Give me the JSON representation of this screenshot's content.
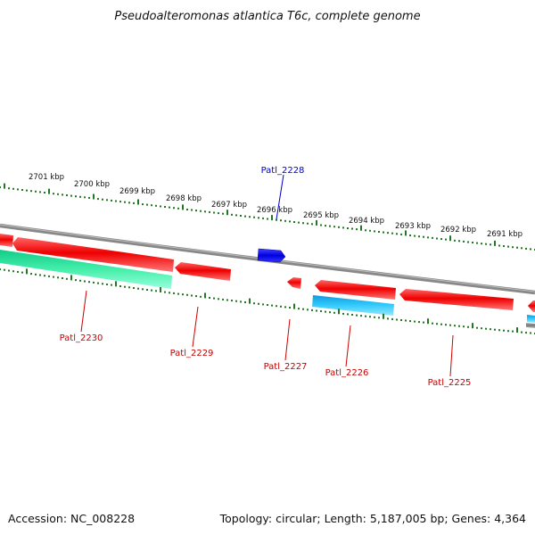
{
  "title": "Pseudoalteromonas atlantica T6c, complete genome",
  "footer": {
    "accession": "Accession: NC_008228",
    "summary": "Topology: circular; Length: 5,187,005 bp; Genes: 4,364"
  },
  "kbp_labels": [
    "2701 kbp",
    "2700 kbp",
    "2699 kbp",
    "2698 kbp",
    "2697 kbp",
    "2696 kbp",
    "2695 kbp",
    "2694 kbp",
    "2693 kbp",
    "2692 kbp",
    "2691 kbp"
  ],
  "gene_labels": {
    "g2228": "Patl_2228",
    "g2230": "Patl_2230",
    "g2229": "Patl_2229",
    "g2227": "Patl_2227",
    "g2226": "Patl_2226",
    "g2225": "Patl_2225"
  },
  "colors": {
    "backbone": "#888888",
    "forward_gene": "#1010ee",
    "reverse_gene": "#ee1111",
    "rna_green": "#22dd99",
    "rna_blue": "#22bbee",
    "ticks": "#227722",
    "forward_label": "#0000cc",
    "reverse_label": "#cc0000"
  }
}
